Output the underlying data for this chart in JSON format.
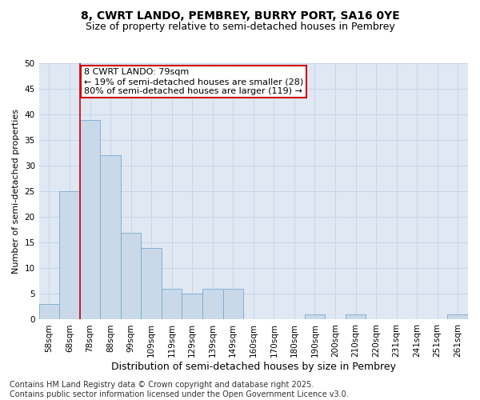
{
  "title_line1": "8, CWRT LANDO, PEMBREY, BURRY PORT, SA16 0YE",
  "title_line2": "Size of property relative to semi-detached houses in Pembrey",
  "xlabel": "Distribution of semi-detached houses by size in Pembrey",
  "ylabel": "Number of semi-detached properties",
  "categories": [
    "58sqm",
    "68sqm",
    "78sqm",
    "88sqm",
    "99sqm",
    "109sqm",
    "119sqm",
    "129sqm",
    "139sqm",
    "149sqm",
    "160sqm",
    "170sqm",
    "180sqm",
    "190sqm",
    "200sqm",
    "210sqm",
    "220sqm",
    "231sqm",
    "241sqm",
    "251sqm",
    "261sqm"
  ],
  "values": [
    3,
    25,
    39,
    32,
    17,
    14,
    6,
    5,
    6,
    6,
    0,
    0,
    0,
    1,
    0,
    1,
    0,
    0,
    0,
    0,
    1
  ],
  "bar_color": "#c9d9ea",
  "bar_edge_color": "#7aaac8",
  "vline_index": 2,
  "vline_color": "#cc0000",
  "annotation_line1": "8 CWRT LANDO: 79sqm",
  "annotation_line2": "← 19% of semi-detached houses are smaller (28)",
  "annotation_line3": "80% of semi-detached houses are larger (119) →",
  "annotation_box_color": "#ffffff",
  "annotation_box_edge_color": "#cc0000",
  "ylim": [
    0,
    50
  ],
  "yticks": [
    0,
    5,
    10,
    15,
    20,
    25,
    30,
    35,
    40,
    45,
    50
  ],
  "grid_color": "#c8d4e8",
  "background_color": "#e0e8f4",
  "footer_text": "Contains HM Land Registry data © Crown copyright and database right 2025.\nContains public sector information licensed under the Open Government Licence v3.0.",
  "title_fontsize": 10,
  "subtitle_fontsize": 9,
  "xlabel_fontsize": 9,
  "ylabel_fontsize": 8,
  "tick_fontsize": 7.5,
  "annotation_fontsize": 8,
  "footer_fontsize": 7
}
